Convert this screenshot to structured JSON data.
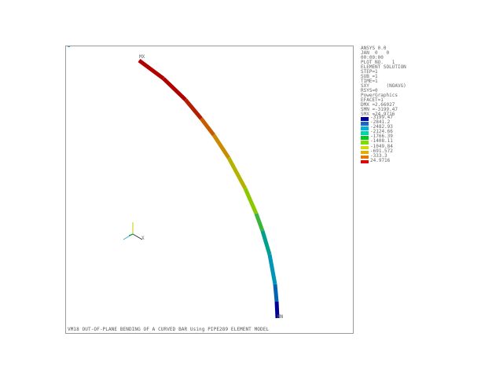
{
  "info_lines": [
    "ANSYS 0.0",
    "JAN  0   0",
    "00:00:00",
    "PLOT NO.   1",
    "ELEMENT SOLUTION",
    "STEP=1",
    "SUB =1",
    "TIME=1",
    "SXY      (NOAVG)",
    "RSYS=0",
    "PowerGraphics",
    "EFACET=1",
    "DMX =2.66027",
    "SMN =-3199.47",
    "SMX =24.9716"
  ],
  "legend": [
    {
      "label": "-3199.47",
      "color": "#0000a0"
    },
    {
      "label": "-2841.2",
      "color": "#1e66c8"
    },
    {
      "label": "-2482.93",
      "color": "#00b4dc"
    },
    {
      "label": "-2124.66",
      "color": "#00d2b4"
    },
    {
      "label": "-1766.39",
      "color": "#00c81e"
    },
    {
      "label": "-1408.11",
      "color": "#7ddc00"
    },
    {
      "label": "-1049.84",
      "color": "#d2dc00"
    },
    {
      "label": "-691.572",
      "color": "#dcb400"
    },
    {
      "label": "-333.3",
      "color": "#e67800"
    },
    {
      "label": "24.9716",
      "color": "#e60000"
    }
  ],
  "labels": {
    "mx": "MX",
    "mn": "MN",
    "axis_x": "X",
    "caption": "VM18 OUT-OF-PLANE BENDING OF A CURVED BAR Using PIPE289 ELEMENT MODEL"
  }
}
